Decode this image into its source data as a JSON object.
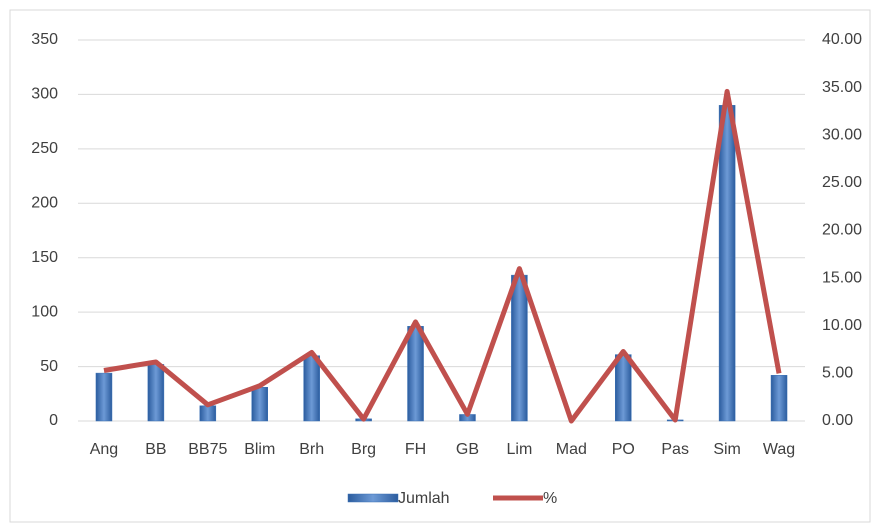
{
  "chart_data": {
    "type": "bar-line",
    "categories": [
      "Ang",
      "BB",
      "BB75",
      "Blim",
      "Brh",
      "Brg",
      "FH",
      "GB",
      "Lim",
      "Mad",
      "PO",
      "Pas",
      "Sim",
      "Wag"
    ],
    "series": [
      {
        "name": "Jumlah",
        "color": "#3a70b5",
        "type": "bar",
        "axis": "y",
        "values": [
          44,
          52,
          14,
          31,
          60,
          2,
          87,
          6,
          134,
          0,
          61,
          1,
          290,
          42
        ]
      },
      {
        "name": "%",
        "color": "#c0504d",
        "type": "line",
        "axis": "y2",
        "values": [
          5.3,
          6.2,
          1.7,
          3.7,
          7.2,
          0.2,
          10.4,
          0.7,
          16.0,
          0.0,
          7.3,
          0.1,
          34.6,
          5.0
        ]
      }
    ],
    "ylim": [
      0,
      350
    ],
    "yticks": [
      0,
      50,
      100,
      150,
      200,
      250,
      300,
      350
    ],
    "y2lim": [
      0,
      40
    ],
    "y2ticks": [
      {
        "value": 0,
        "label": "0.00"
      },
      {
        "value": 5,
        "label": "5.00"
      },
      {
        "value": 10,
        "label": "10.00"
      },
      {
        "value": 15,
        "label": "15.00"
      },
      {
        "value": 20,
        "label": "20.00"
      },
      {
        "value": 25,
        "label": "25.00"
      },
      {
        "value": 30,
        "label": "30.00"
      },
      {
        "value": 35,
        "label": "35.00"
      },
      {
        "value": 40,
        "label": "40.00"
      }
    ],
    "grid": true,
    "legend": "bottom"
  }
}
